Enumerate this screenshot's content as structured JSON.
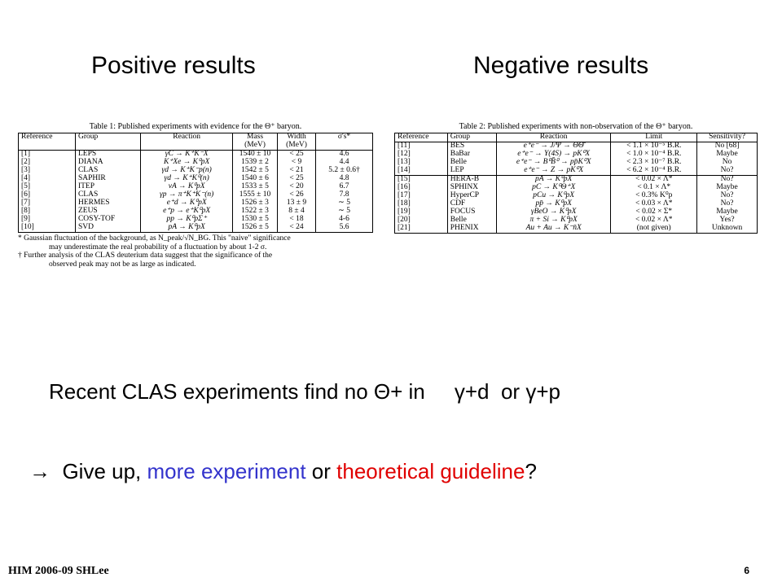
{
  "headings": {
    "positive": "Positive results",
    "negative": "Negative results"
  },
  "table1": {
    "caption": "Table 1: Published experiments with evidence for the Θ⁺ baryon.",
    "headers": [
      "Reference",
      "Group",
      "Reaction",
      "Mass (MeV)",
      "Width (MeV)",
      "σ's*"
    ],
    "rows": [
      [
        "[1]",
        "LEPS",
        "γC → K⁺K⁻X",
        "1540 ± 10",
        "< 25",
        "4.6"
      ],
      [
        "[2]",
        "DIANA",
        "K⁺Xe → K⁰pX",
        "1539 ± 2",
        "< 9",
        "4.4"
      ],
      [
        "[3]",
        "CLAS",
        "γd → K⁺K⁻p(n)",
        "1542 ± 5",
        "< 21",
        "5.2 ± 0.6†"
      ],
      [
        "[4]",
        "SAPHIR",
        "γd → K⁺K⁰(n)",
        "1540 ± 6",
        "< 25",
        "4.8"
      ],
      [
        "[5]",
        "ITEP",
        "νA → K⁰pX",
        "1533 ± 5",
        "< 20",
        "6.7"
      ],
      [
        "[6]",
        "CLAS",
        "γp → π⁺K⁺K⁻(n)",
        "1555 ± 10",
        "< 26",
        "7.8"
      ],
      [
        "[7]",
        "HERMES",
        "e⁺d → K⁰pX",
        "1526 ± 3",
        "13 ± 9",
        "∼ 5"
      ],
      [
        "[8]",
        "ZEUS",
        "e⁺p → e⁺K⁰pX",
        "1522 ± 3",
        "8 ± 4",
        "∼ 5"
      ],
      [
        "[9]",
        "COSY-TOF",
        "pp → K⁰pΣ⁺",
        "1530 ± 5",
        "< 18",
        "4-6"
      ],
      [
        "[10]",
        "SVD",
        "pA → K⁰pX",
        "1526 ± 5",
        "< 24",
        "5.6"
      ]
    ],
    "note1_line1": "* Gaussian fluctuation of the background, as N_peak/√N_BG. This \"naive\" significance",
    "note1_line2": "may underestimate the real probability of a fluctuation by about 1-2 σ.",
    "note2_line1": "† Further analysis of the CLAS deuterium data suggest that the significance of the",
    "note2_line2": "observed peak may not be as large as indicated."
  },
  "table2": {
    "caption": "Table 2: Published experiments with non-observation of the Θ⁺ baryon.",
    "headers": [
      "Reference",
      "Group",
      "Reaction",
      "Limit",
      "Sensitivity?"
    ],
    "rows": [
      [
        "[11]",
        "BES",
        "e⁺e⁻ → J/Ψ → ΘΘ̄",
        "< 1.1 × 10⁻⁵ B.R.",
        "No [68]"
      ],
      [
        "[12]",
        "BaBar",
        "e⁺e⁻ → Υ(4S) → pK⁰X",
        "< 1.0 × 10⁻⁴ B.R.",
        "Maybe"
      ],
      [
        "[13]",
        "Belle",
        "e⁺e⁻ → B⁰B̄⁰ → pp̄K⁰X",
        "< 2.3 × 10⁻⁷ B.R.",
        "No"
      ],
      [
        "[14]",
        "LEP",
        "e⁺e⁻ → Z → pK⁰X",
        "< 6.2 × 10⁻⁴ B.R.",
        "No?"
      ],
      [
        "[15]",
        "HERA-B",
        "pA → K⁰pX",
        "< 0.02 × Λ*",
        "No?"
      ],
      [
        "[16]",
        "SPHINX",
        "pC → K⁰Θ⁺X",
        "< 0.1 × Λ*",
        "Maybe"
      ],
      [
        "[17]",
        "HyperCP",
        "pCu → K⁰pX",
        "< 0.3% K⁰p",
        "No?"
      ],
      [
        "[18]",
        "CDF",
        "pp̄ → K⁰pX",
        "< 0.03 × Λ*",
        "No?"
      ],
      [
        "[19]",
        "FOCUS",
        "γBeO → K⁰pX",
        "< 0.02 × Σ*",
        "Maybe"
      ],
      [
        "[20]",
        "Belle",
        "π + Si → K⁰pX",
        "< 0.02 × Λ*",
        "Yes?"
      ],
      [
        "[21]",
        "PHENIX",
        "Au + Au → K⁻n̄X",
        "(not given)",
        "Unknown"
      ]
    ]
  },
  "statement": {
    "part1": "Recent CLAS experiments find no ",
    "theta": "Θ",
    "part2": "+ in     ",
    "gamma1": "γ",
    "part3": "+d  or ",
    "gamma2": "γ",
    "part4": "+p"
  },
  "giveup": {
    "arrow": "→",
    "part1": "  Give up, ",
    "blue_text": "more experiment",
    "part2": " or ",
    "red_text": "theoretical guideline",
    "part3": "?"
  },
  "footer": {
    "left": "HIM 2006-09 SHLee",
    "right": "6"
  }
}
